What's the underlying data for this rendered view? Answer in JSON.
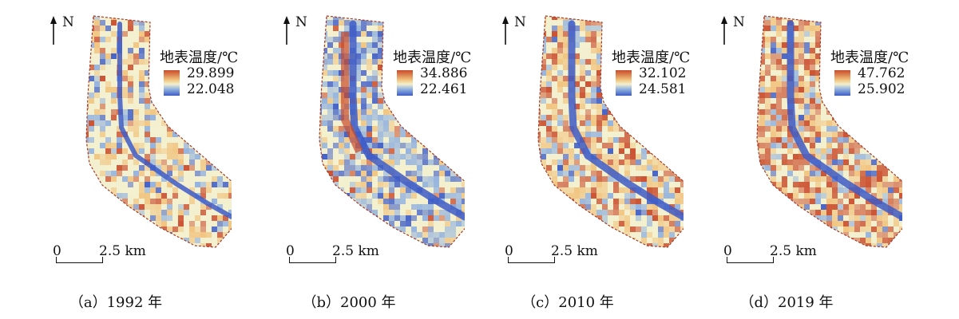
{
  "legend_title": "地表温度/℃",
  "north_label": "N",
  "scale": {
    "start": "0",
    "end": "2.5 km"
  },
  "panels": [
    {
      "max": "29.899",
      "min": "22.048",
      "caption": "（a）1992 年",
      "pattern": "mostly-yellow-with-blue-river"
    },
    {
      "max": "34.886",
      "min": "22.461",
      "caption": "（b）2000 年",
      "pattern": "blue-dominant-with-red-core"
    },
    {
      "max": "32.102",
      "min": "24.581",
      "caption": "（c）2010 年",
      "pattern": "mixed-red-yellow-blue-river"
    },
    {
      "max": "47.762",
      "min": "25.902",
      "caption": "（d）2019 年",
      "pattern": "red-dominant-with-blue-river"
    }
  ],
  "colors": {
    "hot": "#c94a2a",
    "warm": "#f1c27d",
    "mid": "#f3f0cf",
    "cool": "#8fb0df",
    "cold": "#3d5cc7",
    "outline": "#a33b2a"
  }
}
